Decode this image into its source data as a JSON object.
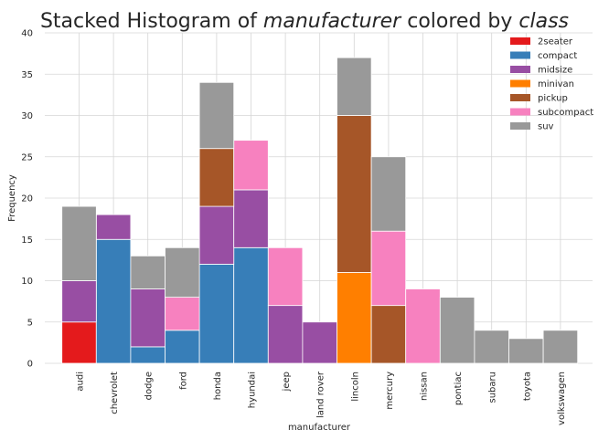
{
  "chart_data": {
    "type": "bar",
    "stacked": true,
    "title": {
      "prefix": "Stacked Histogram of ",
      "var1": "manufacturer",
      "middle": " colored by ",
      "var2": "class"
    },
    "xlabel": "manufacturer",
    "ylabel": "Frequency",
    "ylim": [
      0,
      40
    ],
    "yticks": [
      0,
      5,
      10,
      15,
      20,
      25,
      30,
      35,
      40
    ],
    "grid": true,
    "legend_position": "top-right",
    "categories": [
      "audi",
      "chevrolet",
      "dodge",
      "ford",
      "honda",
      "hyundai",
      "jeep",
      "land rover",
      "lincoln",
      "mercury",
      "nissan",
      "pontiac",
      "subaru",
      "toyota",
      "volkswagen"
    ],
    "series": [
      {
        "name": "2seater",
        "color": "#e41a1c",
        "values": [
          5,
          0,
          0,
          0,
          0,
          0,
          0,
          0,
          0,
          0,
          0,
          0,
          0,
          0,
          0
        ]
      },
      {
        "name": "compact",
        "color": "#377eb8",
        "values": [
          0,
          15,
          2,
          4,
          12,
          14,
          0,
          0,
          0,
          0,
          0,
          0,
          0,
          0,
          0
        ]
      },
      {
        "name": "midsize",
        "color": "#984ea3",
        "values": [
          5,
          3,
          7,
          0,
          7,
          7,
          7,
          5,
          0,
          0,
          0,
          0,
          0,
          0,
          0
        ]
      },
      {
        "name": "minivan",
        "color": "#ff7f00",
        "values": [
          0,
          0,
          0,
          0,
          0,
          0,
          0,
          0,
          11,
          0,
          0,
          0,
          0,
          0,
          0
        ]
      },
      {
        "name": "pickup",
        "color": "#a65628",
        "values": [
          0,
          0,
          0,
          0,
          7,
          0,
          0,
          0,
          19,
          7,
          0,
          0,
          0,
          0,
          0
        ]
      },
      {
        "name": "subcompact",
        "color": "#f781bf",
        "values": [
          0,
          0,
          0,
          4,
          0,
          6,
          7,
          0,
          0,
          9,
          9,
          0,
          0,
          0,
          0
        ]
      },
      {
        "name": "suv",
        "color": "#999999",
        "values": [
          9,
          0,
          4,
          6,
          8,
          0,
          0,
          0,
          7,
          9,
          0,
          8,
          4,
          3,
          4
        ]
      }
    ]
  }
}
